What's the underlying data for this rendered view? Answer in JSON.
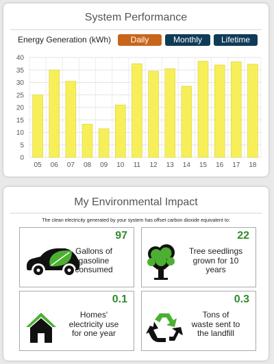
{
  "performance": {
    "title": "System Performance",
    "energy_label": "Energy Generation (kWh)",
    "buttons": {
      "daily": "Daily",
      "monthly": "Monthly",
      "lifetime": "Lifetime"
    },
    "active_button": "daily"
  },
  "chart_data": {
    "type": "bar",
    "categories": [
      "05",
      "06",
      "07",
      "08",
      "09",
      "10",
      "11",
      "12",
      "13",
      "14",
      "15",
      "16",
      "17",
      "18"
    ],
    "values": [
      25,
      35,
      30.5,
      13.3,
      11.5,
      21,
      37.5,
      34.5,
      35.5,
      28.5,
      38.5,
      37,
      38.3,
      37.3
    ],
    "ylim": [
      0,
      40
    ],
    "yticks": [
      0,
      5,
      10,
      15,
      20,
      25,
      30,
      35,
      40
    ],
    "grid": true,
    "bar_color": "#f7ef5a"
  },
  "environment": {
    "title": "My Environmental Impact",
    "subtitle": "The clean electricity generated by your system has offset carbon dioxide equivalent to:",
    "items": [
      {
        "value": "97",
        "line1": "Gallons of",
        "line2": "gasoline",
        "line3": "consumed",
        "icon": "electric-car-icon"
      },
      {
        "value": "22",
        "line1": "Tree seedlings",
        "line2": "grown for 10",
        "line3": "years",
        "icon": "tree-icon"
      },
      {
        "value": "0.1",
        "line1": "Homes'",
        "line2": "electricity use",
        "line3": "for one year",
        "icon": "home-icon"
      },
      {
        "value": "0.3",
        "line1": "Tons of",
        "line2": "waste sent to",
        "line3": "the landfill",
        "icon": "recycle-icon"
      }
    ]
  },
  "colors": {
    "daily_button": "#c8651b",
    "dark_button": "#0f3b57",
    "value_green": "#2e8b2e",
    "icon_green": "#4caf32"
  }
}
